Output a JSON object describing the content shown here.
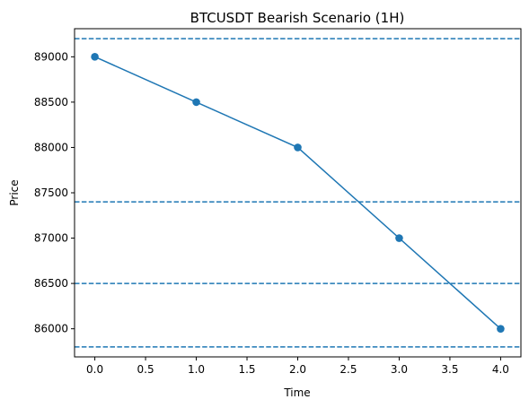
{
  "chart_data": {
    "type": "line",
    "title": "BTCUSDT Bearish Scenario (1H)",
    "xlabel": "Time",
    "ylabel": "Price",
    "xlim": [
      -0.2,
      4.2
    ],
    "ylim": [
      85690,
      89310
    ],
    "xticks": [
      0.0,
      0.5,
      1.0,
      1.5,
      2.0,
      2.5,
      3.0,
      3.5,
      4.0
    ],
    "xtick_labels": [
      "0.0",
      "0.5",
      "1.0",
      "1.5",
      "2.0",
      "2.5",
      "3.0",
      "3.5",
      "4.0"
    ],
    "yticks": [
      86000,
      86500,
      87000,
      87500,
      88000,
      88500,
      89000
    ],
    "ytick_labels": [
      "86000",
      "86500",
      "87000",
      "87500",
      "88000",
      "88500",
      "89000"
    ],
    "grid": false,
    "series": [
      {
        "x": [
          0,
          1,
          2,
          3,
          4
        ],
        "y": [
          89000,
          88500,
          88000,
          87000,
          86000
        ],
        "color": "#1f77b4",
        "marker": "circle"
      }
    ],
    "hlines": [
      {
        "y": 89200,
        "color": "#1f77b4",
        "style": "dashed"
      },
      {
        "y": 87400,
        "color": "#1f77b4",
        "style": "dashed"
      },
      {
        "y": 86500,
        "color": "#1f77b4",
        "style": "dashed"
      },
      {
        "y": 85800,
        "color": "#1f77b4",
        "style": "dashed"
      }
    ]
  }
}
